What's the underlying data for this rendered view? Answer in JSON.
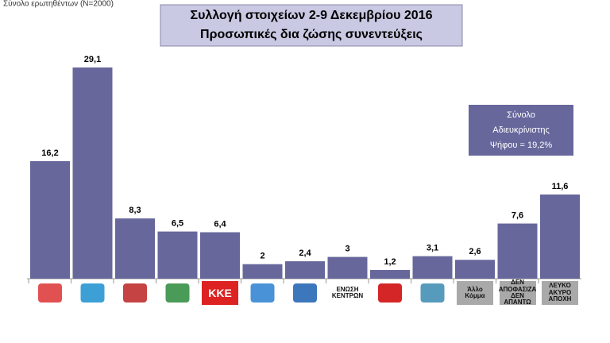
{
  "chart_data": {
    "type": "bar",
    "subtitle": "Σύνολο ερωτηθέντων (N=2000)",
    "title": [
      "Συλλογή στοιχείων  2-9 Δεκεμβρίου 2016",
      "Προσωπικές δια ζώσης συνεντεύξεις"
    ],
    "annotation": [
      "Σύνολο",
      "Αδιευκρίνιστης",
      "Ψήφου = 19,2%"
    ],
    "categories": [
      null,
      null,
      null,
      null,
      "ΚΚΕ",
      null,
      null,
      "ΕΝΩΣΗ ΚΕΝΤΡΩΝ",
      null,
      null,
      "Άλλο Κόμμα",
      "ΔΕΝ ΑΠΟΦΑΣΙΖΑ ΔΕΝ ΑΠΑΝΤΩ",
      "ΛΕΥΚΟ ΑΚΥΡΟ ΑΠΟΧΗ"
    ],
    "values": [
      16.2,
      29.1,
      8.3,
      6.5,
      6.4,
      2,
      2.4,
      3,
      1.2,
      3.1,
      2.6,
      7.6,
      11.6
    ],
    "value_labels": [
      "16,2",
      "29,1",
      "8,3",
      "6,5",
      "6,4",
      "2",
      "2,4",
      "3",
      "1,2",
      "3,1",
      "2,6",
      "7,6",
      "11,6"
    ],
    "color": "#67679c"
  }
}
